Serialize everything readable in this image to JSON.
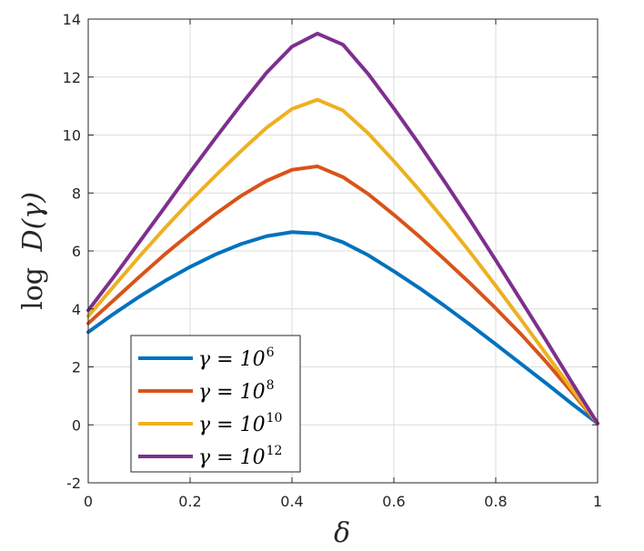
{
  "chart_data": {
    "type": "line",
    "title": "",
    "xlabel": "δ",
    "ylabel": "log D(γ)",
    "ylabel_parts": {
      "fn": "log",
      "body": "D(γ)"
    },
    "xlim": [
      0,
      1
    ],
    "ylim": [
      -2,
      14
    ],
    "xticks": [
      0,
      0.2,
      0.4,
      0.6,
      0.8,
      1
    ],
    "xtick_labels": [
      "0",
      "0.2",
      "0.4",
      "0.6",
      "0.8",
      "1"
    ],
    "yticks": [
      -2,
      0,
      2,
      4,
      6,
      8,
      10,
      12,
      14
    ],
    "ytick_labels": [
      "-2",
      "0",
      "2",
      "4",
      "6",
      "8",
      "10",
      "12",
      "14"
    ],
    "grid": true,
    "legend_position": "bottom-left",
    "x": [
      0,
      0.05,
      0.1,
      0.15,
      0.2,
      0.25,
      0.3,
      0.35,
      0.4,
      0.45,
      0.5,
      0.55,
      0.6,
      0.65,
      0.7,
      0.75,
      0.8,
      0.85,
      0.9,
      0.95,
      1.0
    ],
    "series": [
      {
        "name": "γ = 10^6",
        "legend_base": "γ = 10",
        "legend_exp": "6",
        "color": "#0072BD",
        "values": [
          3.2,
          3.83,
          4.42,
          4.96,
          5.45,
          5.88,
          6.24,
          6.51,
          6.65,
          6.6,
          6.3,
          5.85,
          5.3,
          4.72,
          4.1,
          3.45,
          2.78,
          2.1,
          1.42,
          0.72,
          0.05
        ]
      },
      {
        "name": "γ = 10^8",
        "legend_base": "γ = 10",
        "legend_exp": "8",
        "color": "#D95319",
        "values": [
          3.5,
          4.3,
          5.1,
          5.88,
          6.6,
          7.28,
          7.9,
          8.42,
          8.8,
          8.92,
          8.55,
          7.96,
          7.25,
          6.5,
          5.7,
          4.88,
          4.02,
          3.12,
          2.15,
          1.12,
          0.05
        ]
      },
      {
        "name": "γ = 10^10",
        "legend_base": "γ = 10",
        "legend_exp": "10",
        "color": "#EDB120",
        "values": [
          3.75,
          4.78,
          5.8,
          6.78,
          7.72,
          8.6,
          9.45,
          10.25,
          10.9,
          11.22,
          10.85,
          10.05,
          9.1,
          8.1,
          7.05,
          5.95,
          4.8,
          3.62,
          2.42,
          1.22,
          0.05
        ]
      },
      {
        "name": "γ = 10^12",
        "legend_base": "γ = 10",
        "legend_exp": "12",
        "color": "#7E2F8E",
        "values": [
          3.95,
          5.1,
          6.3,
          7.5,
          8.72,
          9.9,
          11.05,
          12.15,
          13.05,
          13.5,
          13.12,
          12.1,
          10.92,
          9.68,
          8.38,
          7.05,
          5.68,
          4.28,
          2.88,
          1.45,
          0.05
        ]
      }
    ]
  }
}
